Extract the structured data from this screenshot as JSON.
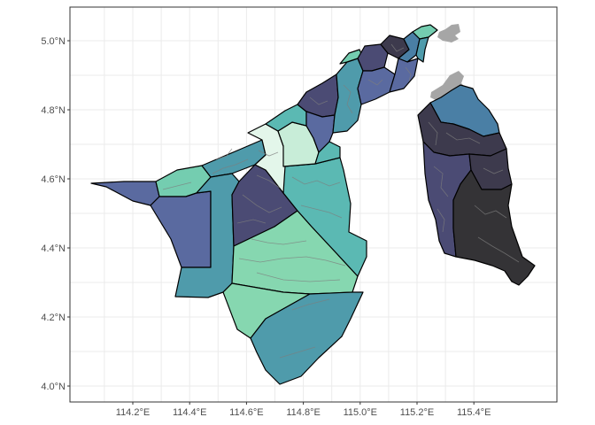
{
  "map": {
    "x_axis": {
      "ticks": [
        {
          "value": 114.2,
          "label": "114.2°E"
        },
        {
          "value": 114.4,
          "label": "114.4°E"
        },
        {
          "value": 114.6,
          "label": "114.6°E"
        },
        {
          "value": 114.8,
          "label": "114.8°E"
        },
        {
          "value": 115.0,
          "label": "115.0°E"
        },
        {
          "value": 115.2,
          "label": "115.2°E"
        },
        {
          "value": 115.4,
          "label": "115.4°E"
        }
      ]
    },
    "y_axis": {
      "ticks": [
        {
          "value": 4.0,
          "label": "4.0°N"
        },
        {
          "value": 4.2,
          "label": "4.2°N"
        },
        {
          "value": 4.4,
          "label": "4.4°N"
        },
        {
          "value": 4.6,
          "label": "4.6°N"
        },
        {
          "value": 4.8,
          "label": "4.8°N"
        },
        {
          "value": 5.0,
          "label": "5.0°N"
        }
      ]
    },
    "grid": true,
    "theme": "black-and-white",
    "legend": "none",
    "colors": {
      "neighbor_land": "#a6a6a6",
      "palette": [
        "#e3f6ea",
        "#c8edd8",
        "#86d7b0",
        "#74cdb0",
        "#5bb9b3",
        "#4f9bab",
        "#4a7fa5",
        "#5a6aa0",
        "#4b4b74",
        "#3d3a4d",
        "#343336"
      ]
    }
  }
}
